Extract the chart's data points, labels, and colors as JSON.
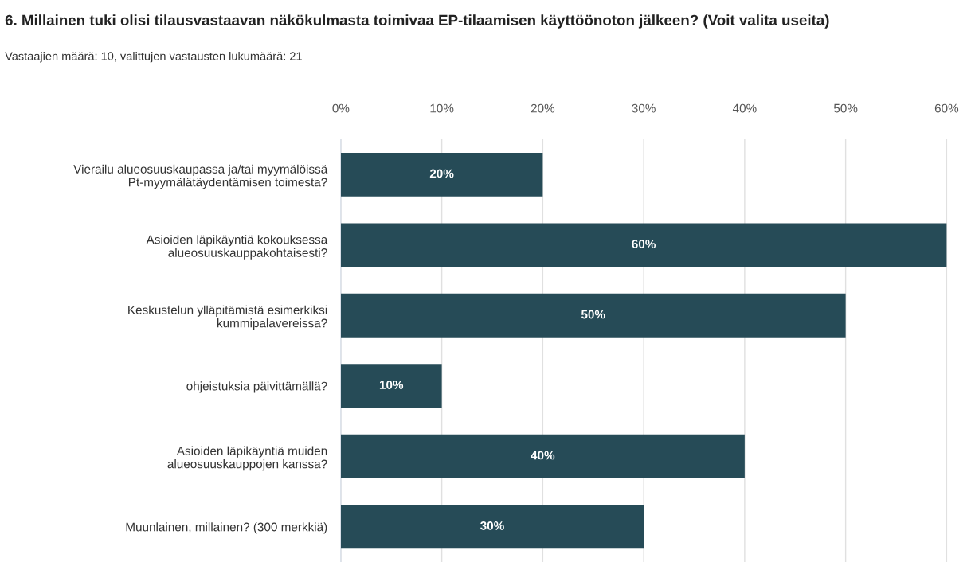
{
  "chart_data": {
    "type": "bar",
    "orientation": "horizontal",
    "title": "6. Millainen tuki olisi tilausvastaavan näkökulmasta toimivaa EP-tilaamisen käyttöönoton jälkeen? (Voit valita useita)",
    "subtitle": "Vastaajien määrä: 10, valittujen vastausten lukumäärä: 21",
    "categories": [
      "Vierailu alueosuuskaupassa ja/tai myymälöissä\nPt-myymälätäydentämisen toimesta?",
      "Asioiden läpikäyntiä kokouksessa\nalueosuuskauppakohtaisesti?",
      "Keskustelun ylläpitämistä esimerkiksi\nkummipalavereissa?",
      "ohjeistuksia päivittämällä?",
      "Asioiden läpikäyntiä muiden\nalueosuuskauppojen kanssa?",
      "Muunlainen, millainen? (300 merkkiä)"
    ],
    "values": [
      20,
      60,
      50,
      10,
      40,
      30
    ],
    "value_labels": [
      "20%",
      "60%",
      "50%",
      "10%",
      "40%",
      "30%"
    ],
    "color": "#264b57",
    "xlim": [
      0,
      60.3
    ],
    "xticks": [
      {
        "value": 0,
        "label": "0%"
      },
      {
        "value": 10,
        "label": "10%"
      },
      {
        "value": 20,
        "label": "20%"
      },
      {
        "value": 30,
        "label": "30%"
      },
      {
        "value": 40,
        "label": "40%"
      },
      {
        "value": 50,
        "label": "50%"
      },
      {
        "value": 60,
        "label": "60%"
      }
    ],
    "grid": "x",
    "legend": false
  }
}
